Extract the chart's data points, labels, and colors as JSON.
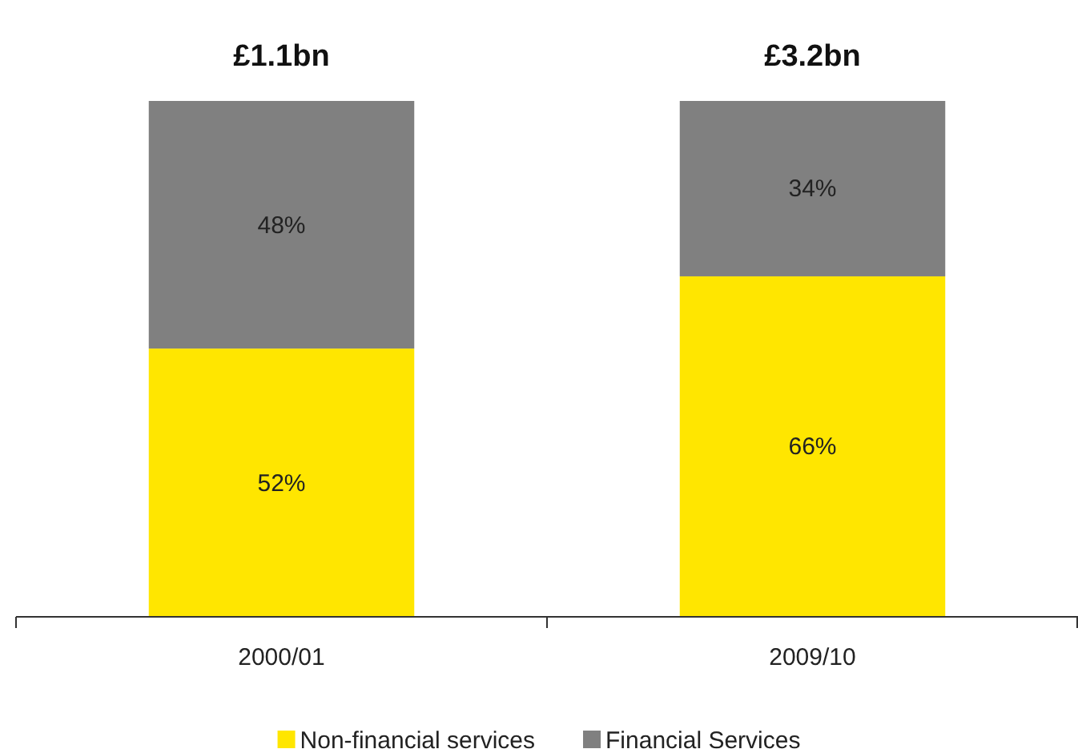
{
  "chart_data": {
    "type": "bar",
    "stacked": true,
    "categories": [
      "2000/01",
      "2009/10"
    ],
    "series": [
      {
        "name": "Non-financial services",
        "color": "#ffe600",
        "values": [
          52,
          66
        ],
        "value_labels": [
          "52%",
          "66%"
        ]
      },
      {
        "name": "Financial Services",
        "color": "#808080",
        "values": [
          48,
          34
        ],
        "value_labels": [
          "48%",
          "34%"
        ]
      }
    ],
    "annotations": [
      {
        "text": "£1.1bn",
        "x": "2000/01",
        "y": 100
      },
      {
        "text": "£3.2bn",
        "x": "2009/10",
        "y": 100
      }
    ],
    "legend": "bottom"
  }
}
